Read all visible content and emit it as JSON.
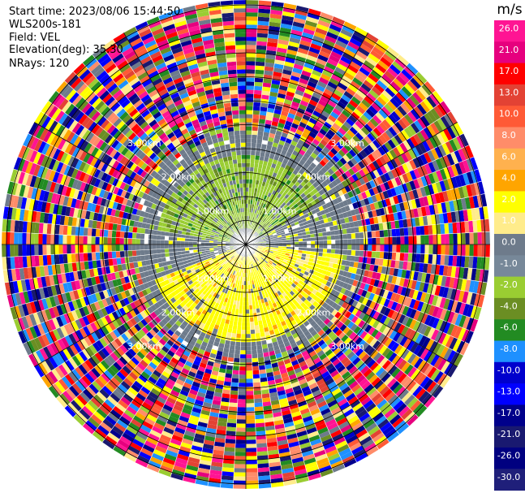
{
  "header": {
    "start_time": "Start time: 2023/08/06 15:44:50",
    "instrument": "WLS200s-181",
    "field": "Field: VEL",
    "elevation": "Elevation(deg): 35.30",
    "nrays": "NRays: 120"
  },
  "colorbar": {
    "unit": "m/s",
    "ticks": [
      "26.0",
      "21.0",
      "17.0",
      "13.0",
      "10.0",
      "8.0",
      "6.0",
      "4.0",
      "2.0",
      "1.0",
      "0.0",
      "-1.0",
      "-2.0",
      "-4.0",
      "-6.0",
      "-8.0",
      "-10.0",
      "-13.0",
      "-17.0",
      "-21.0",
      "-26.0",
      "-30.0"
    ],
    "colors": [
      "#ff1493",
      "#e6007e",
      "#ff0000",
      "#e34234",
      "#ff5a36",
      "#ff8c69",
      "#ffb14e",
      "#ffa500",
      "#ffff00",
      "#ffec8b",
      "#6e7b8b",
      "#778899",
      "#9acd32",
      "#6b8e23",
      "#228b22",
      "#1e90ff",
      "#0000cd",
      "#0000ff",
      "#00008b",
      "#191970",
      "#000080",
      "#1f1f7a"
    ]
  },
  "chart_data": {
    "type": "heatmap",
    "projection": "polar-ppi",
    "field": "VEL",
    "units": "m/s",
    "nrays": 120,
    "range_rings_km": [
      1.0,
      2.0,
      3.0
    ],
    "ring_labels": [
      "1.00km",
      "2.00km",
      "3.00km"
    ],
    "clim": [
      -30.0,
      26.0
    ],
    "grid": true,
    "pattern": {
      "inner_near_zero_gray_extent_km": 1.6,
      "positive_yellow_sector_deg": [
        95,
        250
      ],
      "negative_green_sector_deg": [
        280,
        60
      ],
      "noisy_outer_start_km": 2.4
    }
  }
}
